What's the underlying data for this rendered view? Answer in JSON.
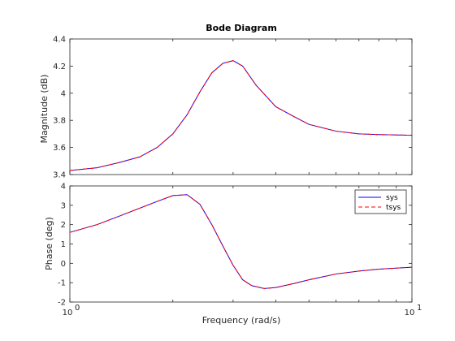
{
  "chart_data": [
    {
      "type": "line",
      "title": "Bode Diagram",
      "xlabel": "Frequency  (rad/s)",
      "ylabel": "Magnitude (dB)",
      "xscale": "log",
      "xlim": [
        1,
        10
      ],
      "ylim": [
        3.4,
        4.4
      ],
      "yticks": [
        "3.4",
        "3.6",
        "3.8",
        "4",
        "4.2",
        "4.4"
      ],
      "grid": false,
      "series": [
        {
          "name": "sys",
          "color": "#0000ff",
          "style": "solid",
          "x": [
            1.0,
            1.2,
            1.4,
            1.6,
            1.8,
            2.0,
            2.2,
            2.4,
            2.6,
            2.8,
            3.0,
            3.2,
            3.5,
            4.0,
            4.5,
            5.0,
            6.0,
            7.0,
            8.0,
            10.0
          ],
          "y": [
            3.43,
            3.45,
            3.49,
            3.53,
            3.6,
            3.7,
            3.84,
            4.01,
            4.15,
            4.22,
            4.24,
            4.2,
            4.06,
            3.9,
            3.83,
            3.77,
            3.72,
            3.7,
            3.695,
            3.69
          ]
        },
        {
          "name": "tsys",
          "color": "#ff0000",
          "style": "dashed",
          "x": [
            1.0,
            1.2,
            1.4,
            1.6,
            1.8,
            2.0,
            2.2,
            2.4,
            2.6,
            2.8,
            3.0,
            3.2,
            3.5,
            4.0,
            4.5,
            5.0,
            6.0,
            7.0,
            8.0,
            10.0
          ],
          "y": [
            3.43,
            3.45,
            3.49,
            3.53,
            3.6,
            3.7,
            3.84,
            4.01,
            4.15,
            4.22,
            4.24,
            4.2,
            4.06,
            3.9,
            3.83,
            3.77,
            3.72,
            3.7,
            3.695,
            3.69
          ]
        }
      ]
    },
    {
      "type": "line",
      "title": "",
      "xlabel": "Frequency  (rad/s)",
      "ylabel": "Phase (deg)",
      "xscale": "log",
      "xlim": [
        1,
        10
      ],
      "ylim": [
        -2,
        4
      ],
      "yticks": [
        "-2",
        "-1",
        "0",
        "1",
        "2",
        "3",
        "4"
      ],
      "xticks": [
        {
          "value": 1,
          "base": "10",
          "exp": "0"
        },
        {
          "value": 10,
          "base": "10",
          "exp": "1"
        }
      ],
      "legend": "top-right",
      "grid": false,
      "series": [
        {
          "name": "sys",
          "color": "#0000ff",
          "style": "solid",
          "x": [
            1.0,
            1.2,
            1.4,
            1.6,
            1.8,
            2.0,
            2.2,
            2.4,
            2.6,
            2.8,
            3.0,
            3.2,
            3.4,
            3.7,
            4.0,
            4.5,
            5.0,
            6.0,
            7.0,
            8.0,
            10.0
          ],
          "y": [
            1.6,
            2.0,
            2.45,
            2.85,
            3.2,
            3.5,
            3.55,
            3.05,
            2.0,
            0.9,
            -0.1,
            -0.85,
            -1.15,
            -1.3,
            -1.25,
            -1.05,
            -0.85,
            -0.55,
            -0.4,
            -0.3,
            -0.2
          ]
        },
        {
          "name": "tsys",
          "color": "#ff0000",
          "style": "dashed",
          "x": [
            1.0,
            1.2,
            1.4,
            1.6,
            1.8,
            2.0,
            2.2,
            2.4,
            2.6,
            2.8,
            3.0,
            3.2,
            3.4,
            3.7,
            4.0,
            4.5,
            5.0,
            6.0,
            7.0,
            8.0,
            10.0
          ],
          "y": [
            1.6,
            2.0,
            2.45,
            2.85,
            3.2,
            3.5,
            3.55,
            3.05,
            2.0,
            0.9,
            -0.1,
            -0.85,
            -1.15,
            -1.3,
            -1.25,
            -1.05,
            -0.85,
            -0.55,
            -0.4,
            -0.3,
            -0.2
          ]
        }
      ]
    }
  ]
}
